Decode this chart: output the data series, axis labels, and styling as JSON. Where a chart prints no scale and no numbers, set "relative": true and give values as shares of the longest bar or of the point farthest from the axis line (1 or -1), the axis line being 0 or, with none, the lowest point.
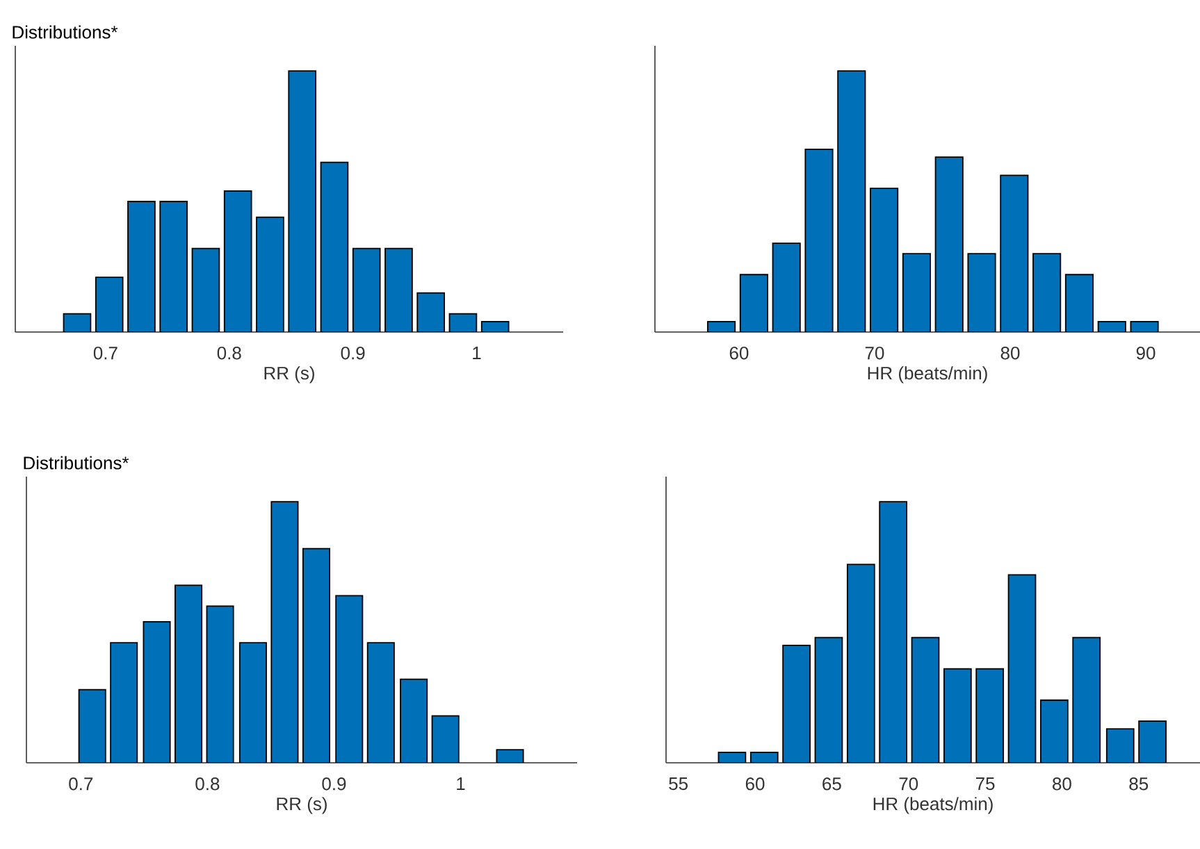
{
  "chart_data": [
    {
      "type": "bar",
      "title": "Distributions*",
      "xlabel": "RR (s)",
      "relative": true,
      "color": "#0070b8",
      "x": [
        0.677,
        0.703,
        0.729,
        0.755,
        0.781,
        0.807,
        0.833,
        0.859,
        0.885,
        0.911,
        0.937,
        0.963,
        0.989,
        1.015
      ],
      "values": [
        0.07,
        0.21,
        0.5,
        0.5,
        0.32,
        0.54,
        0.44,
        1,
        0.65,
        0.32,
        0.32,
        0.15,
        0.07,
        0.04
      ],
      "xlim": [
        0.627,
        1.07
      ],
      "xticks": [
        0.7,
        0.8,
        0.9,
        1
      ]
    },
    {
      "type": "bar",
      "xlabel": "HR (beats/min)",
      "relative": true,
      "color": "#0070b8",
      "x": [
        58.7,
        61.1,
        63.5,
        65.9,
        68.3,
        70.7,
        73.1,
        75.5,
        77.9,
        80.3,
        82.7,
        85.1,
        87.5,
        89.9
      ],
      "values": [
        0.04,
        0.22,
        0.34,
        0.7,
        1,
        0.55,
        0.3,
        0.67,
        0.3,
        0.6,
        0.3,
        0.22,
        0.04,
        0.04
      ],
      "xlim": [
        53.8,
        94
      ],
      "xticks": [
        60,
        70,
        80,
        90
      ]
    },
    {
      "type": "bar",
      "title": "Distributions*",
      "xlabel": "RR (s)",
      "relative": true,
      "color": "#0070b8",
      "x": [
        0.709,
        0.734,
        0.76,
        0.785,
        0.81,
        0.836,
        0.861,
        0.886,
        0.912,
        0.937,
        0.963,
        0.988,
        1.039
      ],
      "values": [
        0.28,
        0.46,
        0.54,
        0.68,
        0.6,
        0.46,
        1,
        0.82,
        0.64,
        0.46,
        0.32,
        0.18,
        0.05
      ],
      "xlim": [
        0.657,
        1.092
      ],
      "xticks": [
        0.7,
        0.8,
        0.9,
        1
      ]
    },
    {
      "type": "bar",
      "xlabel": "HR (beats/min)",
      "relative": true,
      "color": "#0070b8",
      "x": [
        58.5,
        60.6,
        62.7,
        64.8,
        66.9,
        69.0,
        71.1,
        73.2,
        75.3,
        77.4,
        79.5,
        81.6,
        83.8,
        85.9
      ],
      "values": [
        0.04,
        0.04,
        0.45,
        0.48,
        0.76,
        1,
        0.48,
        0.36,
        0.36,
        0.72,
        0.24,
        0.48,
        0.13,
        0.16
      ],
      "xlim": [
        54.2,
        89
      ],
      "xticks": [
        55,
        60,
        65,
        70,
        75,
        80,
        85
      ]
    }
  ]
}
